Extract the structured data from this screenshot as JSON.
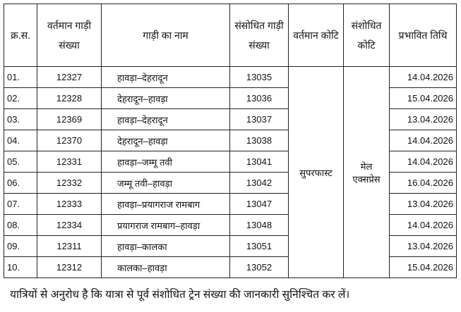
{
  "table": {
    "headers": [
      "क्र.स.",
      "वर्तमान गाड़ी संख्या",
      "गाड़ी का नाम",
      "संसोधित गाड़ी संख्या",
      "वर्तमान कोटि",
      "संशोधित कोटि",
      "प्रभावित तिथि"
    ],
    "current_category": "सुपरफास्ट",
    "revised_category": "मेल एक्सप्रेस",
    "rows": [
      {
        "sn": "01.",
        "current_no": "12327",
        "name": "हावड़ा–देहरादून",
        "revised_no": "13035",
        "date": "14.04.2026"
      },
      {
        "sn": "02.",
        "current_no": "12328",
        "name": "देहरादून–हावड़ा",
        "revised_no": "13036",
        "date": "15.04.2026"
      },
      {
        "sn": "03.",
        "current_no": "12369",
        "name": "हावड़ा–देहरादून",
        "revised_no": "13037",
        "date": "13.04.2026"
      },
      {
        "sn": "04.",
        "current_no": "12370",
        "name": "देहरादून–हावड़ा",
        "revised_no": "13038",
        "date": "14.04.2026"
      },
      {
        "sn": "05.",
        "current_no": "12331",
        "name": "हावड़ा–जम्मू तवी",
        "revised_no": "13041",
        "date": "14.04.2026"
      },
      {
        "sn": "06.",
        "current_no": "12332",
        "name": "जम्मू तवी–हावड़ा",
        "revised_no": "13042",
        "date": "16.04.2026"
      },
      {
        "sn": "07.",
        "current_no": "12333",
        "name": "हावड़ा–प्रयागराज रामबाग",
        "revised_no": "13047",
        "date": "13.04.2026"
      },
      {
        "sn": "08.",
        "current_no": "12334",
        "name": "प्रयागराज रामबाग–हावड़ा",
        "revised_no": "13048",
        "date": "14.04.2026"
      },
      {
        "sn": "09.",
        "current_no": "12311",
        "name": "हावड़ा–कालका",
        "revised_no": "13051",
        "date": "13.04.2026"
      },
      {
        "sn": "10.",
        "current_no": "12312",
        "name": "कालका–हावड़ा",
        "revised_no": "13052",
        "date": "15.04.2026"
      }
    ]
  },
  "note": "यात्रियों से अनुरोध है कि यात्रा से पूर्व संशोधित ट्रेन संख्या की जानकारी सुनिश्चित कर लें।"
}
